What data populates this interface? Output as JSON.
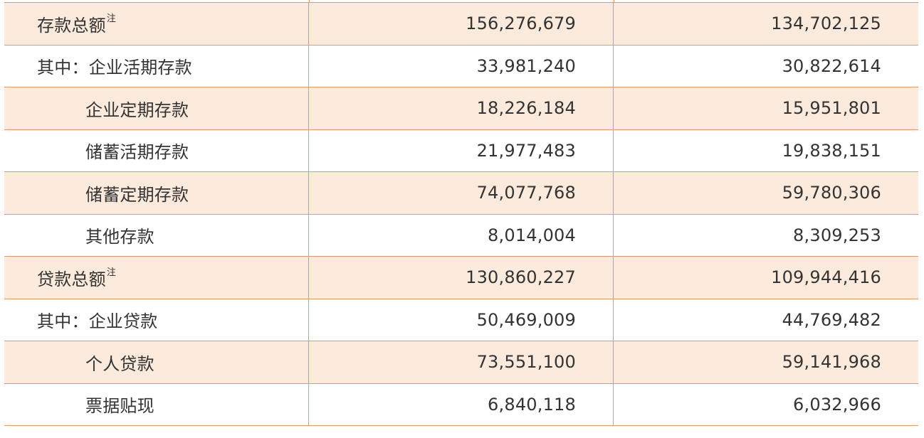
{
  "table": {
    "rows": [
      {
        "label": "存款总额",
        "note": "注",
        "level": 0,
        "shaded": true,
        "v1": "156,276,679",
        "v2": "134,702,125"
      },
      {
        "label": "其中：企业活期存款",
        "note": "",
        "level": 0,
        "shaded": false,
        "v1": "33,981,240",
        "v2": "30,822,614"
      },
      {
        "label": "企业定期存款",
        "note": "",
        "level": 1,
        "shaded": true,
        "v1": "18,226,184",
        "v2": "15,951,801"
      },
      {
        "label": "储蓄活期存款",
        "note": "",
        "level": 1,
        "shaded": false,
        "v1": "21,977,483",
        "v2": "19,838,151"
      },
      {
        "label": "储蓄定期存款",
        "note": "",
        "level": 1,
        "shaded": true,
        "v1": "74,077,768",
        "v2": "59,780,306"
      },
      {
        "label": "其他存款",
        "note": "",
        "level": 1,
        "shaded": false,
        "v1": "8,014,004",
        "v2": "8,309,253"
      },
      {
        "label": "贷款总额",
        "note": "注",
        "level": 0,
        "shaded": true,
        "v1": "130,860,227",
        "v2": "109,944,416"
      },
      {
        "label": "其中：企业贷款",
        "note": "",
        "level": 0,
        "shaded": false,
        "v1": "50,469,009",
        "v2": "44,769,482"
      },
      {
        "label": "个人贷款",
        "note": "",
        "level": 1,
        "shaded": true,
        "v1": "73,551,100",
        "v2": "59,141,968"
      },
      {
        "label": "票据贴现",
        "note": "",
        "level": 1,
        "shaded": false,
        "v1": "6,840,118",
        "v2": "6,032,966"
      }
    ]
  },
  "colors": {
    "border": "#e8956a",
    "shade": "#fcebdd",
    "text": "#333333"
  }
}
